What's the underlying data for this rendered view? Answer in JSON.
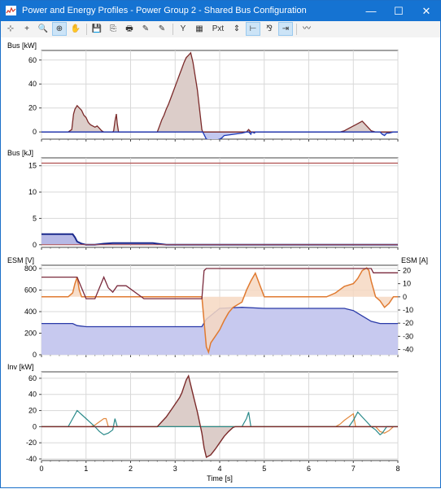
{
  "window": {
    "title": "Power and Energy Profiles - Power Group 2 - Shared Bus Configuration"
  },
  "window_controls": {
    "minimize": "—",
    "maximize": "☐",
    "close": "✕"
  },
  "toolbar": {
    "items": [
      {
        "name": "crosshair",
        "glyph": "⊹"
      },
      {
        "name": "add-point",
        "glyph": "+"
      },
      {
        "name": "zoom-out",
        "glyph": "🔍"
      },
      {
        "name": "zoom-in",
        "glyph": "⊕",
        "active": true
      },
      {
        "name": "pan",
        "glyph": "✋"
      },
      {
        "sep": true
      },
      {
        "name": "save",
        "glyph": "💾"
      },
      {
        "name": "copy",
        "glyph": "⎘"
      },
      {
        "name": "print",
        "glyph": "🖶"
      },
      {
        "name": "edit",
        "glyph": "✎"
      },
      {
        "name": "properties",
        "glyph": "✎"
      },
      {
        "sep": true
      },
      {
        "name": "y-axis",
        "glyph": "Y"
      },
      {
        "name": "calculator",
        "glyph": "▦"
      },
      {
        "name": "pixel",
        "glyph": "Pxt"
      },
      {
        "name": "scale",
        "glyph": "⇕"
      },
      {
        "name": "split",
        "glyph": "⊢",
        "active": true
      },
      {
        "name": "legend",
        "glyph": "⅋"
      },
      {
        "name": "fit",
        "glyph": "⇥",
        "active": true
      },
      {
        "sep": true
      },
      {
        "name": "signal",
        "glyph": "〰"
      }
    ]
  },
  "colors": {
    "bus_fill": "#dccdc9",
    "bus_line": "#7b2a2a",
    "neg_fill": "#c3c8ef",
    "neg_line": "#1d39b8",
    "energy_line": "#1c2a8c",
    "energy_fill": "#b7b9e6",
    "limit_line": "#b05050",
    "esm_v_line": "#7a2a3c",
    "esm_a_line": "#e07a30",
    "esm_a_fill": "#f6d8c2",
    "esm_low_line": "#2a3aa8",
    "esm_low_fill": "#c7c9ef",
    "inv_teal": "#2a8a8a",
    "inv_orange": "#e28a40",
    "grid": "#d8d8d8"
  },
  "chart_data": [
    {
      "type": "area",
      "ylabel": "Bus [kW]",
      "ylim": [
        -6,
        68
      ],
      "yticks": [
        0,
        20,
        40,
        60
      ],
      "x_ticks": [
        0,
        1,
        2,
        3,
        4,
        5,
        6,
        7,
        8
      ],
      "grid": true,
      "series": [
        {
          "x": [
            0,
            0.6,
            0.68,
            0.72,
            0.75,
            0.8,
            0.85,
            0.9,
            0.95,
            1.0,
            1.05,
            1.1,
            1.15,
            1.2,
            1.25,
            1.3,
            1.35,
            1.4,
            1.45,
            1.5,
            1.55,
            1.6,
            1.62,
            1.65,
            1.68,
            1.7,
            1.73,
            2.6,
            2.65,
            2.7,
            2.75,
            2.8,
            2.85,
            2.9,
            2.95,
            3.0,
            3.05,
            3.1,
            3.15,
            3.2,
            3.25,
            3.3,
            3.35,
            3.4,
            3.5,
            3.6,
            3.62,
            3.7,
            3.8,
            3.9,
            4.0,
            4.05,
            4.1,
            4.5,
            4.6,
            4.65,
            4.7,
            4.72,
            4.78,
            4.8,
            6.7,
            6.8,
            6.9,
            7.0,
            7.1,
            7.2,
            7.3,
            7.4,
            7.5,
            7.6,
            7.65,
            7.7,
            7.75,
            7.8,
            7.9,
            8.0
          ],
          "y": [
            0,
            0,
            2,
            15,
            19,
            22,
            20,
            18,
            14,
            12,
            8,
            6,
            5,
            4,
            5,
            3,
            1,
            0,
            0,
            0,
            0,
            0,
            1,
            9,
            15,
            7,
            0,
            0,
            5,
            10,
            14,
            19,
            23,
            28,
            33,
            38,
            43,
            48,
            53,
            58,
            62,
            64,
            66,
            58,
            35,
            2,
            0,
            -6,
            -7,
            -7,
            -6,
            -5,
            -3,
            -1,
            0,
            2,
            -2,
            0,
            -1,
            0,
            0,
            1,
            3,
            5,
            7,
            9,
            5,
            1,
            0,
            0,
            -2,
            -3,
            -1,
            -1,
            0,
            0
          ]
        }
      ]
    },
    {
      "type": "area",
      "ylabel": "Bus [kJ]",
      "ylim": [
        -0.5,
        16.5
      ],
      "yticks": [
        0,
        5,
        10,
        15
      ],
      "x_ticks": [
        0,
        1,
        2,
        3,
        4,
        5,
        6,
        7,
        8
      ],
      "grid": true,
      "limit": 15.5,
      "series": [
        {
          "x": [
            0,
            0.6,
            0.7,
            0.75,
            0.8,
            0.9,
            1.0,
            1.1,
            1.2,
            1.3,
            1.4,
            1.6,
            1.7,
            2.5,
            2.6,
            2.7,
            2.8,
            3.0,
            3.15,
            3.3,
            3.4,
            3.5,
            3.6,
            3.7,
            3.8,
            3.9,
            4.0,
            4.1,
            4.2,
            4.3,
            4.4,
            4.5,
            4.6,
            4.7,
            5.0,
            6.5,
            6.8,
            7.0,
            7.1,
            7.2,
            7.3,
            7.5,
            7.6,
            7.7,
            7.75,
            7.8,
            7.85,
            7.9,
            8.0
          ],
          "y": [
            2,
            2,
            2,
            1.4,
            0.6,
            0.2,
            0,
            0,
            0,
            0.1,
            0.2,
            0.3,
            0.3,
            0.3,
            0.2,
            0.1,
            0,
            0,
            0,
            0,
            0,
            0,
            0,
            0,
            0,
            0,
            0,
            0,
            0,
            0,
            0,
            0,
            0,
            0,
            0,
            0,
            0,
            0,
            0,
            0,
            0,
            0,
            0,
            0,
            0,
            0,
            0,
            0,
            0
          ]
        }
      ]
    },
    {
      "type": "line",
      "ylabel": "ESM [V]",
      "y2label": "ESM [A]",
      "ylim": [
        0,
        830
      ],
      "yticks": [
        0,
        200,
        400,
        600,
        800
      ],
      "y2lim": [
        -44,
        24
      ],
      "y2ticks": [
        -40,
        -30,
        -20,
        -10,
        0,
        10,
        20
      ],
      "x_ticks": [
        0,
        1,
        2,
        3,
        4,
        5,
        6,
        7,
        8
      ],
      "grid": true,
      "series": [
        {
          "name": "ESM [V]",
          "x": [
            0,
            0.75,
            0.8,
            1.0,
            1.2,
            1.3,
            1.4,
            1.5,
            1.6,
            1.7,
            1.9,
            2.3,
            2.6,
            2.9,
            3.6,
            3.65,
            3.7,
            4.0,
            5.0,
            6.5,
            7.0,
            7.2,
            7.4,
            7.45,
            7.6,
            8.0
          ],
          "y": [
            720,
            720,
            720,
            520,
            520,
            620,
            720,
            620,
            580,
            640,
            640,
            520,
            520,
            520,
            520,
            780,
            800,
            800,
            800,
            800,
            800,
            800,
            800,
            760,
            760,
            760
          ]
        },
        {
          "name": "ESM [A]",
          "x": [
            0,
            0.6,
            0.7,
            0.75,
            0.8,
            0.85,
            0.9,
            1.0,
            2.0,
            3.0,
            3.5,
            3.6,
            3.7,
            3.75,
            3.8,
            3.9,
            4.0,
            4.1,
            4.2,
            4.3,
            4.5,
            4.6,
            4.7,
            4.8,
            5.0,
            6.4,
            6.6,
            6.8,
            7.0,
            7.1,
            7.2,
            7.3,
            7.35,
            7.4,
            7.45,
            7.5,
            7.6,
            7.7,
            7.8,
            7.9,
            8.0
          ],
          "y": [
            0,
            0,
            3,
            10,
            15,
            5,
            0,
            0,
            0,
            0,
            0,
            0,
            -38,
            -42,
            -35,
            -30,
            -25,
            -18,
            -12,
            -8,
            -4,
            5,
            12,
            18,
            0,
            0,
            3,
            8,
            10,
            14,
            20,
            22,
            20,
            12,
            6,
            0,
            -3,
            -8,
            -5,
            0,
            0
          ]
        },
        {
          "name": "ESM low",
          "x": [
            0,
            0.7,
            0.8,
            1.0,
            2.0,
            3.0,
            3.6,
            3.7,
            4.0,
            4.5,
            5.0,
            6.0,
            6.6,
            6.8,
            7.0,
            7.2,
            7.4,
            7.6,
            8.0
          ],
          "y": [
            290,
            290,
            270,
            260,
            260,
            260,
            260,
            330,
            430,
            440,
            430,
            430,
            430,
            430,
            410,
            360,
            310,
            290,
            290
          ]
        }
      ]
    },
    {
      "type": "line",
      "ylabel": "Inv [kW]",
      "ylim": [
        -42,
        68
      ],
      "yticks": [
        -40,
        -20,
        0,
        20,
        40,
        60
      ],
      "x_ticks": [
        0,
        1,
        2,
        3,
        4,
        5,
        6,
        7,
        8
      ],
      "xlabel": "Time [s]",
      "grid": true,
      "series": [
        {
          "name": "Inv teal",
          "x": [
            0,
            0.6,
            0.7,
            0.8,
            0.9,
            1.0,
            1.1,
            1.2,
            1.3,
            1.4,
            1.5,
            1.6,
            1.65,
            1.7,
            1.75,
            4.5,
            4.55,
            4.6,
            4.65,
            4.7,
            4.75,
            6.9,
            7.0,
            7.1,
            7.2,
            7.3,
            7.4,
            7.5,
            7.6,
            7.65,
            7.7,
            7.75,
            8.0
          ],
          "y": [
            0,
            0,
            10,
            20,
            15,
            10,
            5,
            0,
            -6,
            -10,
            -8,
            -4,
            10,
            0,
            0,
            0,
            5,
            10,
            18,
            0,
            0,
            0,
            8,
            18,
            12,
            6,
            0,
            -4,
            -10,
            -8,
            -4,
            0,
            0
          ]
        },
        {
          "name": "Inv orange",
          "x": [
            0,
            1.1,
            1.2,
            1.3,
            1.4,
            1.45,
            1.5,
            6.6,
            6.7,
            6.8,
            6.9,
            7.0,
            7.05,
            7.1,
            7.5,
            7.6,
            7.7,
            7.8,
            7.9,
            8.0
          ],
          "y": [
            0,
            0,
            2,
            6,
            10,
            10,
            0,
            0,
            3,
            8,
            12,
            16,
            0,
            0,
            0,
            -6,
            -8,
            -5,
            0,
            0
          ]
        },
        {
          "name": "Inv main",
          "x": [
            0,
            2.5,
            2.6,
            2.7,
            2.8,
            2.9,
            3.0,
            3.1,
            3.15,
            3.2,
            3.25,
            3.3,
            3.4,
            3.5,
            3.6,
            3.65,
            3.7,
            3.8,
            3.9,
            4.0,
            4.1,
            4.2,
            4.3,
            4.35,
            4.4,
            8.0
          ],
          "y": [
            0,
            0,
            0,
            6,
            12,
            20,
            28,
            36,
            42,
            50,
            58,
            63,
            40,
            18,
            -8,
            -26,
            -38,
            -35,
            -28,
            -20,
            -12,
            -6,
            -1,
            0,
            0,
            0
          ]
        }
      ]
    }
  ],
  "axis_labels": {
    "p0": "Bus [kW]",
    "p1": "Bus [kJ]",
    "p2": "ESM [V]",
    "p2r": "ESM [A]",
    "p3": "Inv [kW]",
    "x": "Time [s]"
  },
  "x_tick_labels": [
    "0",
    "1",
    "2",
    "3",
    "4",
    "5",
    "6",
    "7",
    "8"
  ]
}
